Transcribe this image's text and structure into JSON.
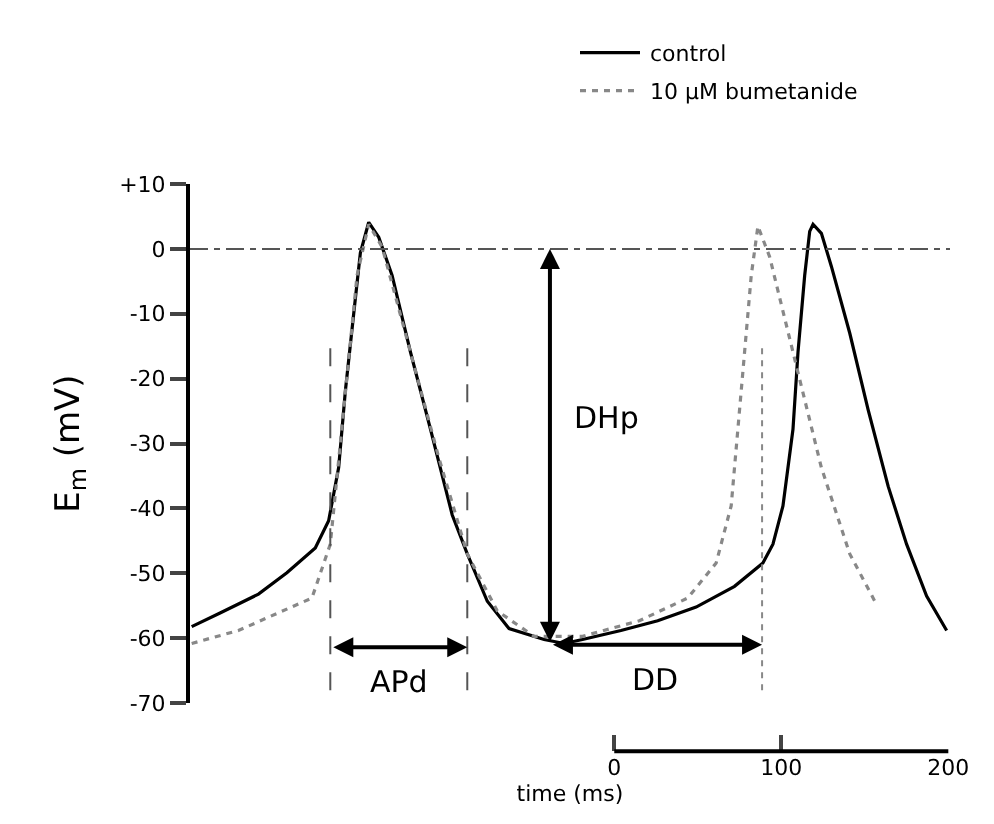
{
  "chart_data": {
    "type": "line",
    "xlabel": "time (ms)",
    "ylabel": "E$_{m}$ (mV)",
    "xlim": [
      -254,
      201
    ],
    "xticks": [
      0,
      100,
      200
    ],
    "ylim": [
      -70,
      10
    ],
    "yticks": [
      {
        "value": 10,
        "label": "+10"
      },
      0,
      -10,
      -20,
      -30,
      -40,
      -50,
      -60,
      -70
    ],
    "legend": "top right",
    "tick_labels": "xy",
    "series": [
      {
        "name": "control",
        "color": "#000000",
        "line_style": "solid",
        "x": [
          -253,
          -236,
          -213,
          -196,
          -179,
          -171,
          -165,
          -161,
          -156,
          -152,
          -147,
          -141,
          -133,
          -122,
          -110,
          -97,
          -88,
          -76,
          -63,
          -42,
          -30,
          -19,
          4,
          26,
          49,
          72,
          89,
          95,
          101,
          107,
          110,
          114,
          117,
          119,
          124,
          130,
          141,
          152,
          164,
          175,
          187,
          199
        ],
        "values": [
          -58.2,
          -56.1,
          -53.2,
          -49.9,
          -46.1,
          -41.9,
          -33.7,
          -21.9,
          -10,
          -0.6,
          4.1,
          1.8,
          -4.1,
          -15.9,
          -27.8,
          -41,
          -47,
          -54.3,
          -58.5,
          -60.2,
          -60.8,
          -60.2,
          -58.8,
          -57.3,
          -55.2,
          -52,
          -48.4,
          -45.5,
          -39.6,
          -27.8,
          -15.9,
          -4.1,
          2.7,
          3.8,
          2.4,
          -2.7,
          -13,
          -24.8,
          -36.6,
          -45.5,
          -53.5,
          -58.8
        ]
      },
      {
        "name": "10 μM bumetanide",
        "color": "#888888",
        "line_style": "dotted",
        "x": [
          -253,
          -225,
          -181,
          -170,
          -162,
          -154,
          -147,
          -139,
          -122,
          -105,
          -88,
          -70,
          -48,
          -19,
          15,
          44,
          61,
          70,
          76,
          82,
          86,
          93,
          107,
          124,
          141,
          156
        ],
        "values": [
          -60.8,
          -58.8,
          -53.8,
          -45.5,
          -24.8,
          -4.1,
          3.8,
          0.3,
          -15.9,
          -32.2,
          -47,
          -55.8,
          -59.7,
          -59.7,
          -57.3,
          -53.8,
          -48.4,
          -39.6,
          -21.9,
          -4.1,
          3.5,
          -1.2,
          -15.9,
          -33.7,
          -47,
          -54.3
        ]
      }
    ],
    "ref_lines": [
      {
        "axis": "y",
        "value": 0,
        "color": "#555555",
        "line_style": "dashdot"
      },
      {
        "axis": "x",
        "value": -170,
        "color": "#555555",
        "line_style": "dashed"
      },
      {
        "axis": "x",
        "value": -88,
        "color": "#555555",
        "line_style": "dashed"
      },
      {
        "axis": "x",
        "value": 88.5,
        "color": "#888888",
        "line_style": "dotted"
      }
    ],
    "annotations": [
      "APd",
      "DHp",
      "DD"
    ]
  }
}
